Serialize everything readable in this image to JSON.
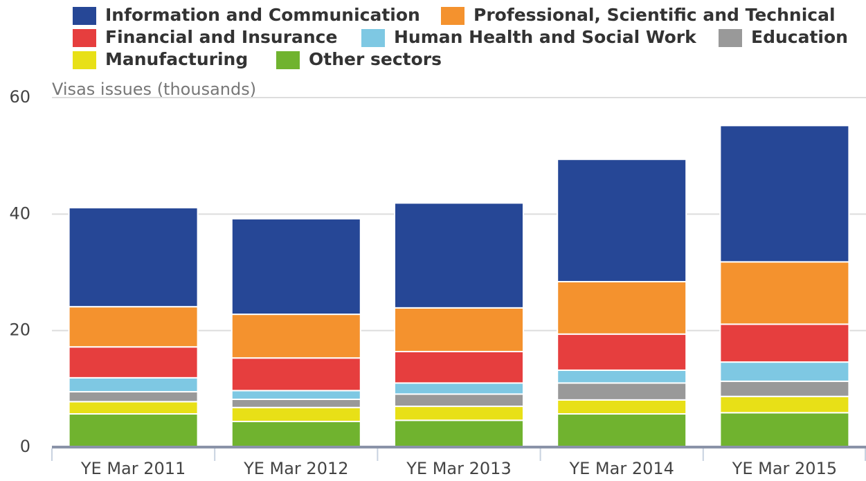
{
  "chart_data": {
    "type": "stacked_bar",
    "y_axis_title": "Visas issues (thousands)",
    "categories": [
      "YE Mar 2011",
      "YE Mar 2012",
      "YE Mar 2013",
      "YE Mar 2014",
      "YE Mar 2015"
    ],
    "series": [
      {
        "name": "Information and Communication",
        "color": "#264796",
        "values": [
          17.0,
          16.4,
          18.0,
          21.0,
          23.4
        ]
      },
      {
        "name": "Professional, Scientific and Technical",
        "color": "#f4922e",
        "values": [
          6.9,
          7.5,
          7.5,
          9.0,
          10.7
        ]
      },
      {
        "name": "Financial and Insurance",
        "color": "#e63e3e",
        "values": [
          5.3,
          5.6,
          5.4,
          6.2,
          6.5
        ]
      },
      {
        "name": "Human Health and Social Work",
        "color": "#7ec8e3",
        "values": [
          2.4,
          1.5,
          1.9,
          2.2,
          3.3
        ]
      },
      {
        "name": "Education",
        "color": "#999999",
        "values": [
          1.7,
          1.4,
          2.1,
          2.9,
          2.6
        ]
      },
      {
        "name": "Manufacturing",
        "color": "#e8e017",
        "values": [
          2.1,
          2.4,
          2.4,
          2.4,
          2.8
        ]
      },
      {
        "name": "Other sectors",
        "color": "#70b32f",
        "values": [
          5.7,
          4.4,
          4.6,
          5.7,
          5.9
        ]
      }
    ],
    "ylim": [
      0,
      60
    ],
    "yticks": [
      0,
      20,
      40,
      60
    ],
    "grid": true
  }
}
